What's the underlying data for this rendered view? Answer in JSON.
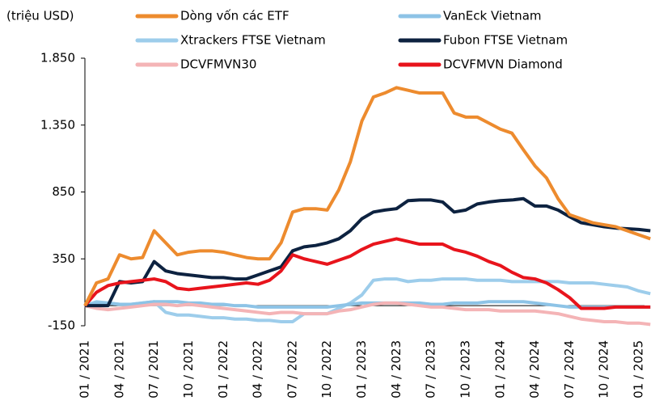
{
  "chart_data": {
    "type": "line",
    "y_label": "(triệu USD)",
    "categories": [
      "01 / 2021",
      null,
      null,
      "04 / 2021",
      null,
      null,
      "07 / 2021",
      null,
      null,
      "10 / 2021",
      null,
      null,
      "01 / 2022",
      null,
      null,
      "04 / 2022",
      null,
      null,
      "07 / 2022",
      null,
      null,
      "10 / 2022",
      null,
      null,
      "01 / 2023",
      null,
      null,
      "04 / 2023",
      null,
      null,
      "07 / 2023",
      null,
      null,
      "10 / 2023",
      null,
      null,
      "01 / 2024",
      null,
      null,
      "04 / 2024",
      null,
      null,
      "07 / 2024",
      null,
      null,
      "10 / 2024",
      null,
      null,
      "01 / 2025",
      null
    ],
    "ylim": [
      -150,
      1850
    ],
    "yticks": [
      -150,
      350,
      850,
      {
        "value": 1350,
        "label": "1.350"
      },
      {
        "value": 1850,
        "label": "1.850"
      }
    ],
    "series": [
      {
        "name": "Dòng vốn các ETF",
        "color": "#ED8B2E",
        "values": [
          0,
          170,
          200,
          380,
          350,
          360,
          560,
          470,
          380,
          400,
          410,
          410,
          400,
          380,
          360,
          350,
          350,
          470,
          700,
          725,
          725,
          715,
          865,
          1075,
          1380,
          1560,
          1590,
          1630,
          1610,
          1590,
          1590,
          1590,
          1440,
          1410,
          1410,
          1365,
          1320,
          1290,
          1165,
          1045,
          955,
          800,
          680,
          650,
          620,
          605,
          590,
          560,
          530,
          500
        ]
      },
      {
        "name": "VanEck Vietnam",
        "color": "#8DC3E6",
        "values": [
          0,
          20,
          20,
          10,
          10,
          20,
          30,
          30,
          30,
          20,
          20,
          10,
          10,
          0,
          0,
          -10,
          -10,
          -10,
          -10,
          -10,
          -10,
          -10,
          0,
          10,
          20,
          20,
          20,
          20,
          20,
          20,
          10,
          10,
          20,
          20,
          20,
          30,
          30,
          30,
          30,
          20,
          10,
          0,
          -10,
          -10,
          -10,
          -10,
          -10,
          -10,
          -10,
          -10
        ]
      },
      {
        "name": "Xtrackers FTSE Vietnam",
        "color": "#9DCDEB",
        "values": [
          0,
          30,
          20,
          10,
          10,
          20,
          30,
          -50,
          -70,
          -70,
          -80,
          -90,
          -90,
          -100,
          -100,
          -110,
          -110,
          -120,
          -120,
          -60,
          -60,
          -60,
          -20,
          20,
          80,
          190,
          200,
          200,
          180,
          190,
          190,
          200,
          200,
          200,
          190,
          190,
          190,
          180,
          180,
          180,
          180,
          180,
          170,
          170,
          170,
          160,
          150,
          140,
          110,
          90
        ]
      },
      {
        "name": "Fubon FTSE Vietnam",
        "color": "#0D2240",
        "values": [
          0,
          0,
          0,
          180,
          170,
          180,
          330,
          260,
          240,
          230,
          220,
          210,
          210,
          200,
          200,
          230,
          260,
          290,
          410,
          440,
          450,
          470,
          500,
          560,
          650,
          700,
          715,
          725,
          785,
          790,
          790,
          775,
          700,
          715,
          760,
          775,
          785,
          790,
          800,
          745,
          745,
          715,
          665,
          620,
          605,
          590,
          580,
          575,
          570,
          560
        ]
      },
      {
        "name": "DCVFMVN30",
        "color": "#F4B4B6",
        "values": [
          0,
          -20,
          -30,
          -20,
          -10,
          0,
          10,
          10,
          0,
          10,
          0,
          -10,
          -20,
          -30,
          -40,
          -50,
          -60,
          -50,
          -50,
          -60,
          -60,
          -60,
          -40,
          -30,
          -10,
          10,
          20,
          20,
          10,
          0,
          -10,
          -10,
          -20,
          -30,
          -30,
          -30,
          -40,
          -40,
          -40,
          -40,
          -50,
          -60,
          -80,
          -100,
          -110,
          -120,
          -120,
          -130,
          -130,
          -140
        ]
      },
      {
        "name": "DCVFMVN Diamond",
        "color": "#E8141C",
        "values": [
          0,
          100,
          150,
          170,
          180,
          190,
          200,
          180,
          130,
          120,
          130,
          140,
          150,
          160,
          170,
          160,
          190,
          260,
          380,
          350,
          330,
          310,
          340,
          370,
          420,
          460,
          480,
          500,
          480,
          460,
          460,
          460,
          420,
          400,
          370,
          330,
          300,
          250,
          210,
          200,
          170,
          120,
          60,
          -20,
          -20,
          -20,
          -10,
          -10,
          -10,
          -10
        ]
      }
    ]
  }
}
